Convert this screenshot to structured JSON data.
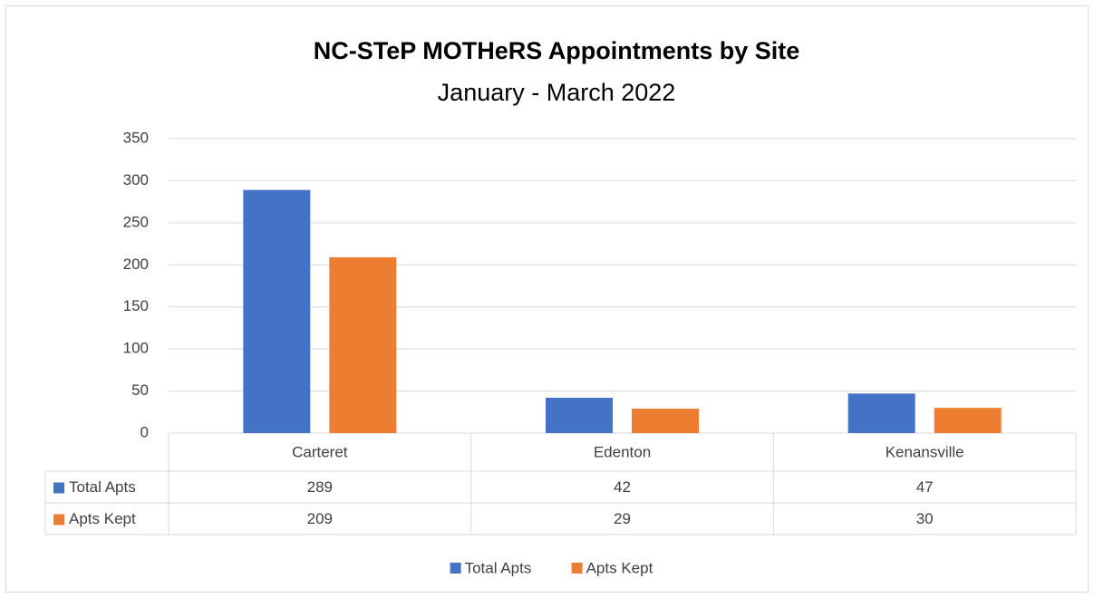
{
  "chart_data": {
    "type": "bar",
    "title": "NC-STeP MOTHeRS Appointments by Site",
    "subtitle": "January - March 2022",
    "categories": [
      "Carteret",
      "Edenton",
      "Kenansville"
    ],
    "series": [
      {
        "name": "Total Apts",
        "color": "#4472c4",
        "values": [
          289,
          42,
          47
        ]
      },
      {
        "name": "Apts Kept",
        "color": "#ed7d31",
        "values": [
          209,
          29,
          30
        ]
      }
    ],
    "ylim": [
      0,
      350
    ],
    "yticks": [
      0,
      50,
      100,
      150,
      200,
      250,
      300,
      350
    ],
    "grid": true,
    "legend": "bottom",
    "data_table": true
  }
}
